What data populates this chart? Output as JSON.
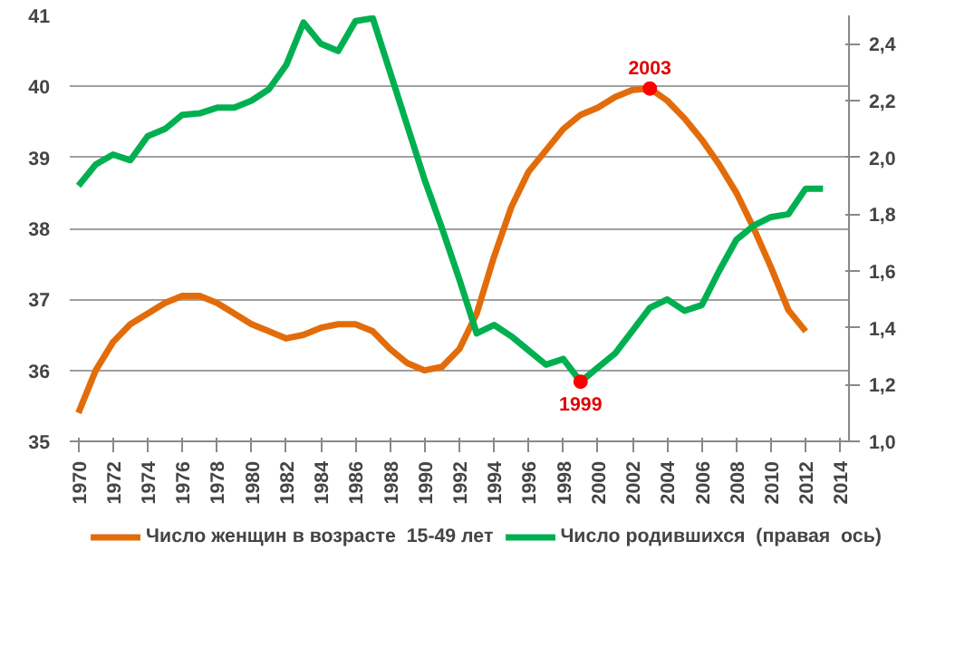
{
  "chart_data": {
    "type": "line",
    "x": [
      1970,
      1971,
      1972,
      1973,
      1974,
      1975,
      1976,
      1977,
      1978,
      1979,
      1980,
      1981,
      1982,
      1983,
      1984,
      1985,
      1986,
      1987,
      1988,
      1989,
      1990,
      1991,
      1992,
      1993,
      1994,
      1995,
      1996,
      1997,
      1998,
      1999,
      2000,
      2001,
      2002,
      2003,
      2004,
      2005,
      2006,
      2007,
      2008,
      2009,
      2010,
      2011,
      2012,
      2013
    ],
    "series": [
      {
        "name": "Число женщин в возрасте  15-49 лет",
        "color": "#e36c0a",
        "values": [
          35.4,
          36.0,
          36.4,
          36.65,
          36.8,
          36.95,
          37.05,
          37.05,
          36.95,
          36.8,
          36.65,
          36.55,
          36.45,
          36.5,
          36.6,
          36.65,
          36.65,
          36.55,
          36.3,
          36.1,
          36.0,
          36.05,
          36.3,
          36.8,
          37.6,
          38.3,
          38.8,
          39.1,
          39.4,
          39.6,
          39.7,
          39.85,
          39.95,
          39.97,
          39.8,
          39.55,
          39.25,
          38.9,
          38.5,
          38.0,
          37.45,
          36.85,
          36.55,
          null
        ]
      },
      {
        "name": "Число родившихся  (правая  ось)",
        "color": "#00b050",
        "axis": "y2",
        "values": [
          1.9,
          1.975,
          2.01,
          1.99,
          2.075,
          2.1,
          2.15,
          2.155,
          2.175,
          2.175,
          2.2,
          2.24,
          2.325,
          2.475,
          2.4,
          2.375,
          2.48,
          2.49,
          2.3,
          2.11,
          1.92,
          1.75,
          1.57,
          1.38,
          1.41,
          1.37,
          1.32,
          1.27,
          1.29,
          1.21,
          1.26,
          1.31,
          1.39,
          1.47,
          1.5,
          1.46,
          1.48,
          1.6,
          1.71,
          1.76,
          1.79,
          1.8,
          1.89,
          1.89
        ]
      }
    ],
    "xlim": [
      1969.5,
      2014.5
    ],
    "xticks": [
      1970,
      1972,
      1974,
      1976,
      1978,
      1980,
      1982,
      1984,
      1986,
      1988,
      1990,
      1992,
      1994,
      1996,
      1998,
      2000,
      2002,
      2004,
      2006,
      2008,
      2010,
      2012,
      2014
    ],
    "ylim": [
      35,
      41
    ],
    "yticks": [
      35,
      36,
      37,
      38,
      39,
      40,
      41
    ],
    "y2lim": [
      1.0,
      2.5
    ],
    "y2ticks": [
      {
        "value": 1.0,
        "label": "1,0"
      },
      {
        "value": 1.2,
        "label": "1,2"
      },
      {
        "value": 1.4,
        "label": "1,4"
      },
      {
        "value": 1.6,
        "label": "1,6"
      },
      {
        "value": 1.8,
        "label": "1,8"
      },
      {
        "value": 2.0,
        "label": "2,0"
      },
      {
        "value": 2.2,
        "label": "2,2"
      },
      {
        "value": 2.4,
        "label": "2,4"
      }
    ],
    "annotations": [
      {
        "text": "1999",
        "x": 1999,
        "y": 35.84
      },
      {
        "text": "2003",
        "x": 2003,
        "y": 39.97
      }
    ],
    "grid": "y",
    "legend": "bottom",
    "marker": "none",
    "line_style": "solid"
  }
}
